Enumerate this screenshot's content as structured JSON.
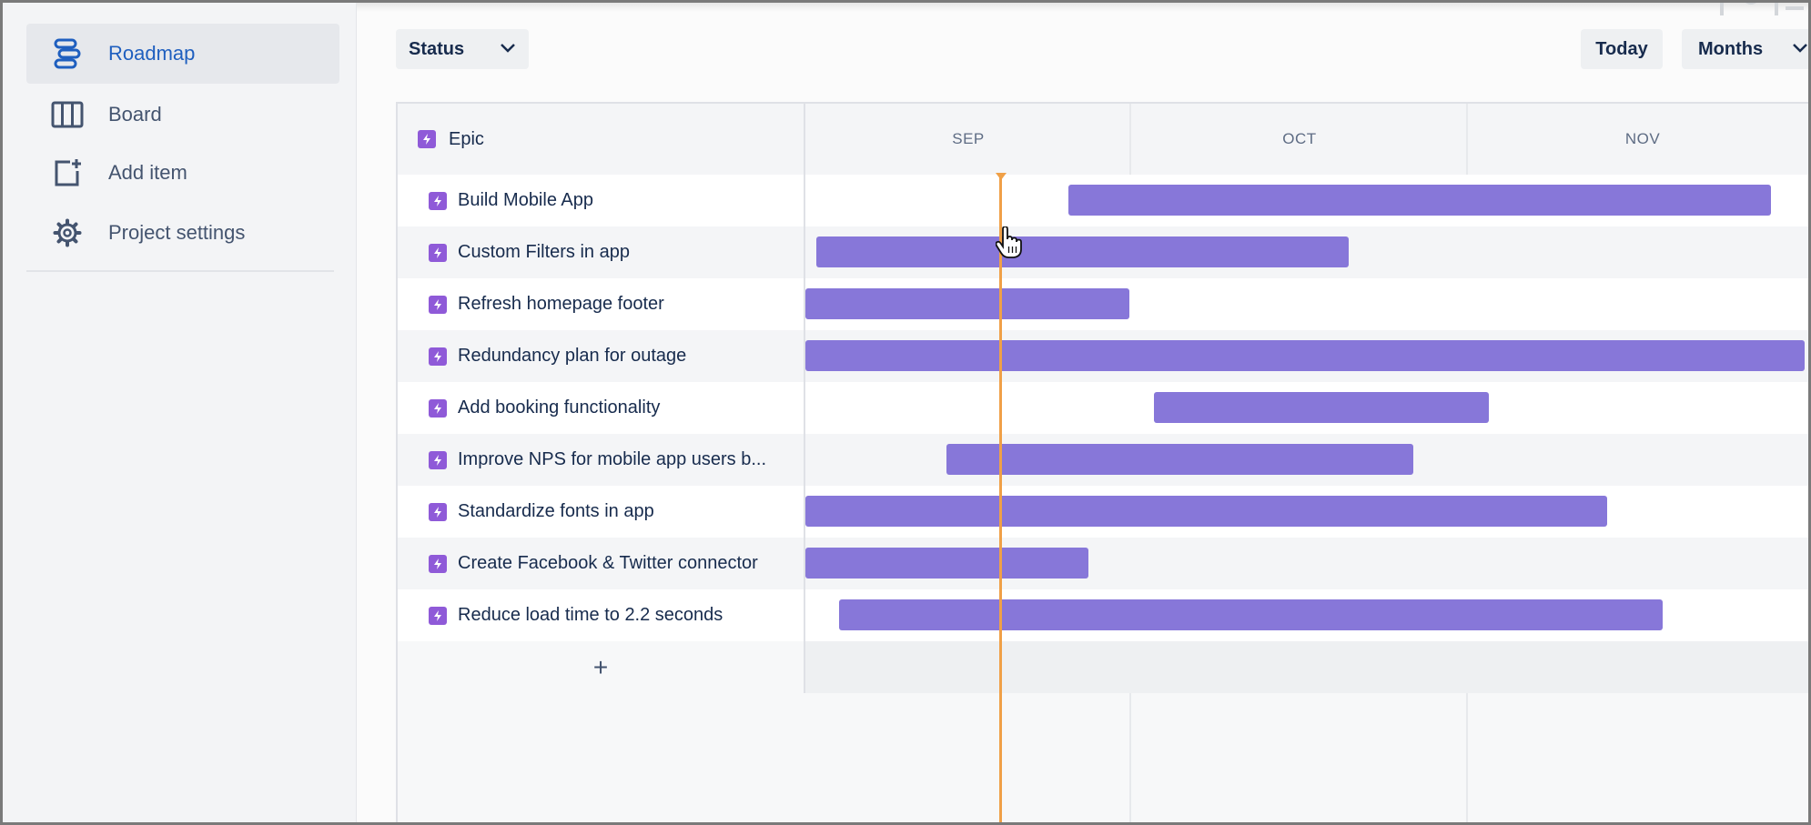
{
  "sidebar": {
    "items": [
      {
        "label": "Roadmap",
        "icon": "roadmap-icon",
        "active": true
      },
      {
        "label": "Board",
        "icon": "board-icon",
        "active": false
      },
      {
        "label": "Add item",
        "icon": "add-item-icon",
        "active": false
      },
      {
        "label": "Project settings",
        "icon": "gear-icon",
        "active": false
      }
    ]
  },
  "toolbar": {
    "status_label": "Status",
    "today_label": "Today",
    "months_label": "Months"
  },
  "timeline": {
    "epic_header": "Epic",
    "months": [
      "SEP",
      "OCT",
      "NOV"
    ],
    "add_label": "+",
    "epics": [
      {
        "title": "Build Mobile App"
      },
      {
        "title": "Custom Filters in app"
      },
      {
        "title": "Refresh homepage footer"
      },
      {
        "title": "Redundancy plan for outage"
      },
      {
        "title": "Add booking functionality"
      },
      {
        "title": "Improve NPS for mobile app users b..."
      },
      {
        "title": "Standardize fonts in app"
      },
      {
        "title": "Create Facebook & Twitter connector"
      },
      {
        "title": "Reduce load time to 2.2 seconds"
      }
    ]
  },
  "colors": {
    "accent": "#1f5fbf",
    "epic_badge": "#8f5ad8",
    "bar": "#8777d9",
    "today_line": "#f0a047"
  }
}
